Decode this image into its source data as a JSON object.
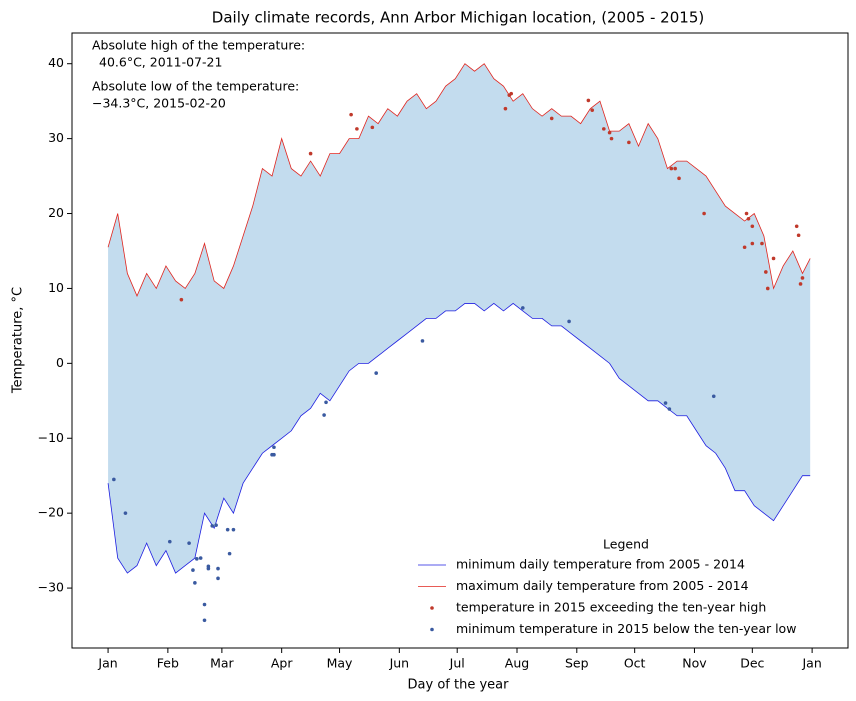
{
  "chart_data": {
    "type": "line",
    "title": "Daily climate records, Ann Arbor Michigan location, (2005 - 2015)",
    "xlabel": "Day of the year",
    "ylabel": "Temperature, °C",
    "annotations": [
      [
        "Absolute high of the temperature:",
        "40.6°C, 2011-07-21"
      ],
      [
        "Absolute low of the temperature:",
        "−34.3°C, 2015-02-20"
      ]
    ],
    "legend_title": "Legend",
    "legend": "lower right",
    "fill_between": {
      "color": "#c3dcee"
    },
    "xlim": [
      -17.7,
      384.6
    ],
    "ylim": [
      -38.0,
      44.1
    ],
    "xticks": [
      {
        "value": 1,
        "label": "Jan"
      },
      {
        "value": 32,
        "label": "Feb"
      },
      {
        "value": 60,
        "label": "Mar"
      },
      {
        "value": 91,
        "label": "Apr"
      },
      {
        "value": 121,
        "label": "May"
      },
      {
        "value": 152,
        "label": "Jun"
      },
      {
        "value": 182,
        "label": "Jul"
      },
      {
        "value": 213,
        "label": "Aug"
      },
      {
        "value": 244,
        "label": "Sep"
      },
      {
        "value": 274,
        "label": "Oct"
      },
      {
        "value": 305,
        "label": "Nov"
      },
      {
        "value": 335,
        "label": "Dec"
      },
      {
        "value": 366,
        "label": "Jan"
      }
    ],
    "yticks": [
      {
        "value": -30,
        "label": "−30"
      },
      {
        "value": -20,
        "label": "−20"
      },
      {
        "value": -10,
        "label": "−10"
      },
      0,
      10,
      20,
      30,
      40
    ],
    "x": [
      1,
      6,
      11,
      16,
      21,
      26,
      31,
      36,
      41,
      46,
      51,
      56,
      61,
      66,
      71,
      76,
      81,
      86,
      91,
      96,
      101,
      106,
      111,
      116,
      121,
      126,
      131,
      136,
      141,
      146,
      151,
      156,
      161,
      166,
      171,
      176,
      181,
      186,
      191,
      196,
      201,
      206,
      211,
      216,
      221,
      226,
      231,
      236,
      241,
      246,
      251,
      256,
      261,
      266,
      271,
      276,
      281,
      286,
      291,
      296,
      301,
      306,
      311,
      316,
      321,
      326,
      331,
      336,
      341,
      346,
      351,
      356,
      361,
      365
    ],
    "series": [
      {
        "name": "minimum daily temperature from 2005 - 2014",
        "kind": "line",
        "color": "#1f1fe0",
        "values": [
          -16,
          -26,
          -28,
          -27,
          -24,
          -27,
          -25,
          -28,
          -27,
          -26,
          -20,
          -22,
          -18,
          -20,
          -16,
          -14,
          -12,
          -11,
          -10,
          -9,
          -7,
          -6,
          -4,
          -5,
          -3,
          -1,
          0,
          0,
          1,
          2,
          3,
          4,
          5,
          6,
          6,
          7,
          7,
          8,
          8,
          7,
          8,
          7,
          8,
          7,
          6,
          6,
          5,
          5,
          4,
          3,
          2,
          1,
          0,
          -2,
          -3,
          -4,
          -5,
          -5,
          -6,
          -7,
          -7,
          -9,
          -11,
          -12,
          -14,
          -17,
          -17,
          -19,
          -20,
          -21,
          -19,
          -17,
          -15,
          -15
        ]
      },
      {
        "name": "maximum daily temperature from 2005 - 2014",
        "kind": "line",
        "color": "#e0251e",
        "values": [
          15.5,
          20,
          12,
          9,
          12,
          10,
          13,
          11,
          10,
          12,
          16,
          11,
          10,
          13,
          17,
          21,
          26,
          25,
          30,
          26,
          25,
          27,
          25,
          28,
          28,
          30,
          30,
          33,
          32,
          34,
          33,
          35,
          36,
          34,
          35,
          37,
          38,
          40,
          39,
          40,
          38,
          37,
          35,
          36,
          34,
          33,
          34,
          33,
          33,
          32,
          34,
          35,
          31,
          31,
          32,
          29,
          32,
          30,
          26,
          27,
          27,
          26,
          25,
          23,
          21,
          20,
          19,
          20,
          17,
          10,
          13,
          15,
          12,
          14
        ]
      },
      {
        "name": "temperature in 2015 exceeding the ten-year high",
        "kind": "scatter",
        "color": "#c0392b",
        "x": [
          39,
          106,
          127,
          130,
          138,
          207,
          209,
          210,
          231,
          250,
          252,
          258,
          261,
          262,
          271,
          293,
          295,
          297,
          310,
          331,
          332,
          333,
          335,
          335,
          340,
          342,
          343,
          346,
          358,
          359,
          360,
          361
        ],
        "values": [
          8.5,
          28,
          33.2,
          31.3,
          31.5,
          34,
          35.8,
          36,
          32.7,
          35.1,
          33.8,
          31.3,
          30.8,
          30,
          29.5,
          26,
          26,
          24.7,
          20,
          15.5,
          20,
          19.3,
          18.3,
          16,
          16,
          12.2,
          10,
          14,
          18.3,
          17.1,
          10.6,
          11.4
        ]
      },
      {
        "name": "minimum temperature in 2015 below the ten-year low",
        "kind": "scatter",
        "color": "#3a5aa0",
        "x": [
          4,
          10,
          33,
          43,
          45,
          46,
          47,
          49,
          51,
          51,
          53,
          53,
          55,
          57,
          58,
          58,
          63,
          64,
          66,
          86,
          87,
          87,
          113,
          114,
          140,
          164,
          216,
          240,
          290,
          292,
          315
        ],
        "values": [
          -15.5,
          -20,
          -23.8,
          -24,
          -27.6,
          -29.3,
          -26.1,
          -26,
          -32.2,
          -34.3,
          -27.1,
          -27.4,
          -21.7,
          -21.6,
          -28.7,
          -27.4,
          -22.2,
          -25.4,
          -22.2,
          -12.2,
          -11.2,
          -12.2,
          -6.9,
          -5.2,
          -1.3,
          3,
          7.4,
          5.6,
          -5.3,
          -6.1,
          -4.4
        ]
      }
    ]
  }
}
